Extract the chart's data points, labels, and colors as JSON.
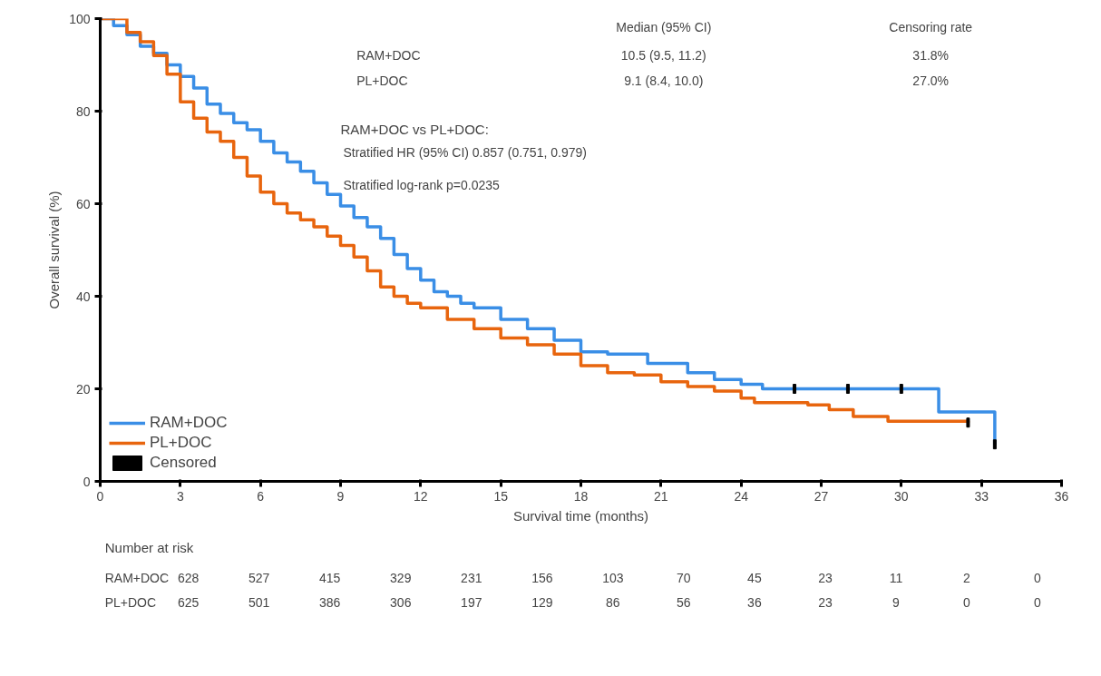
{
  "chart_data": {
    "type": "step",
    "xlabel": "Survival time (months)",
    "ylabel": "Overall survival (%)",
    "xlim": [
      0,
      36
    ],
    "xticks": [
      0,
      3,
      6,
      9,
      12,
      15,
      18,
      21,
      24,
      27,
      30,
      33,
      36
    ],
    "ylim": [
      0,
      100
    ],
    "yticks": [
      0,
      20,
      40,
      60,
      80,
      100
    ],
    "grid": false,
    "legend": "bottom left",
    "series": [
      {
        "name": "RAM+DOC",
        "color": "#3a8ee6",
        "x": [
          0,
          0.5,
          1,
          1.5,
          2,
          2.5,
          3,
          3.5,
          4,
          4.5,
          5,
          5.5,
          6,
          6.5,
          7,
          7.5,
          8,
          8.5,
          9,
          9.5,
          10,
          10.5,
          11,
          11.5,
          12,
          12.5,
          13,
          13.5,
          14,
          15,
          16,
          17,
          18,
          19,
          19.8,
          20.5,
          22,
          23,
          24,
          24.8,
          31.4,
          33.5
        ],
        "values": [
          100,
          98.5,
          96.5,
          94,
          92.5,
          90,
          87.5,
          85,
          81.5,
          79.5,
          77.5,
          76,
          73.5,
          71,
          69,
          67,
          64.5,
          62,
          59.5,
          57,
          55,
          52.5,
          49,
          46,
          43.5,
          41,
          40,
          38.5,
          37.5,
          35,
          33,
          30.5,
          28,
          27.5,
          27.5,
          25.5,
          23.5,
          22,
          21,
          20,
          15,
          8
        ]
      },
      {
        "name": "PL+DOC",
        "color": "#e8650e",
        "x": [
          0,
          1,
          1.5,
          2,
          2.5,
          3,
          3.5,
          4,
          4.5,
          5,
          5.5,
          6,
          6.5,
          7,
          7.5,
          8,
          8.5,
          9,
          9.5,
          10,
          10.5,
          11,
          11.5,
          12,
          13,
          14,
          15,
          16,
          17,
          18,
          19,
          20,
          21,
          22,
          23,
          24,
          24.5,
          26.5,
          27.3,
          28.2,
          29.5,
          32.5
        ],
        "values": [
          100,
          97,
          95,
          92,
          88,
          82,
          78.5,
          75.5,
          73.5,
          70,
          66,
          62.5,
          60,
          58,
          56.5,
          55,
          53,
          51,
          48.5,
          45.5,
          42,
          40,
          38.5,
          37.5,
          35,
          33,
          31,
          29.5,
          27.5,
          25,
          23.5,
          23,
          21.5,
          20.5,
          19.5,
          18,
          17,
          16.5,
          15.5,
          14,
          13,
          12.7
        ]
      },
      {
        "name": "Censored",
        "type": "scatter",
        "marker": "square",
        "color": "#000000",
        "x": [
          26,
          28,
          30,
          32.5,
          33.5
        ],
        "values": [
          20,
          20,
          20,
          12.7,
          8
        ]
      }
    ],
    "annotations": [
      "Median (95% CI)",
      "Censoring rate",
      "RAM+DOC",
      "10.5 (9.5, 11.2)",
      "31.8%",
      "PL+DOC",
      "9.1 (8.4, 10.0)",
      "27.0%",
      "RAM+DOC vs PL+DOC:",
      "Stratified HR (95% CI) 0.857 (0.751, 0.979)",
      "Stratified log-rank p=0.0235",
      "Number at risk",
      "RAM+DOC 628 527 415 329 231 156 103 70 45 23 11 2 0",
      "PL+DOC 625 501 386 306 197 129 86 56 36 23 9 0 0"
    ]
  }
}
